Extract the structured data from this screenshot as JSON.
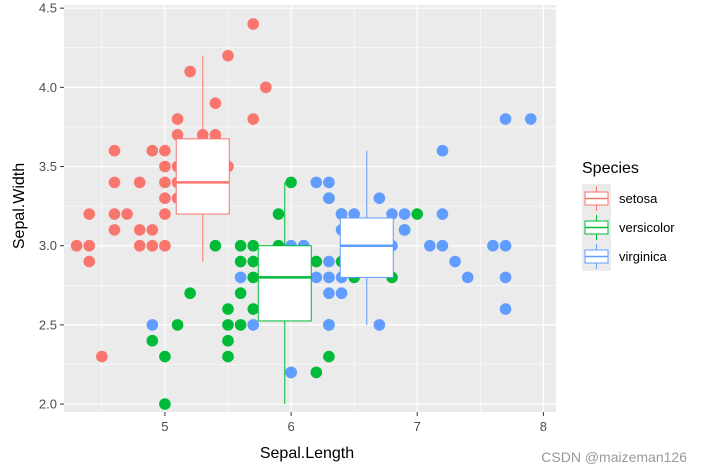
{
  "chart_data": {
    "type": "scatter",
    "overlay": "boxplot",
    "xlabel": "Sepal.Length",
    "ylabel": "Sepal.Width",
    "xlim": [
      4.2,
      8.1
    ],
    "ylim": [
      1.95,
      4.52
    ],
    "x_ticks": [
      5,
      6,
      7,
      8
    ],
    "y_ticks": [
      2.0,
      2.5,
      3.0,
      3.5,
      4.0,
      4.5
    ],
    "x_tick_labels": [
      "5",
      "6",
      "7",
      "8"
    ],
    "y_tick_labels": [
      "2.0",
      "2.5",
      "3.0",
      "3.5",
      "4.0",
      "4.5"
    ],
    "grid": true,
    "legend": {
      "title": "Species",
      "position": "right",
      "entries": [
        "setosa",
        "versicolor",
        "virginica"
      ]
    },
    "series": [
      {
        "name": "setosa",
        "color": "#F8766D",
        "points": [
          [
            4.3,
            3.0
          ],
          [
            4.4,
            3.0
          ],
          [
            4.4,
            2.9
          ],
          [
            4.4,
            3.2
          ],
          [
            4.5,
            2.3
          ],
          [
            4.6,
            3.1
          ],
          [
            4.6,
            3.2
          ],
          [
            4.6,
            3.4
          ],
          [
            4.6,
            3.6
          ],
          [
            4.7,
            3.2
          ],
          [
            4.8,
            3.0
          ],
          [
            4.8,
            3.1
          ],
          [
            4.8,
            3.4
          ],
          [
            4.9,
            3.0
          ],
          [
            4.9,
            3.1
          ],
          [
            4.9,
            3.6
          ],
          [
            5.0,
            3.0
          ],
          [
            5.0,
            3.2
          ],
          [
            5.0,
            3.3
          ],
          [
            5.0,
            3.4
          ],
          [
            5.0,
            3.5
          ],
          [
            5.0,
            3.6
          ],
          [
            5.1,
            3.3
          ],
          [
            5.1,
            3.4
          ],
          [
            5.1,
            3.5
          ],
          [
            5.1,
            3.7
          ],
          [
            5.1,
            3.8
          ],
          [
            5.2,
            3.4
          ],
          [
            5.2,
            3.5
          ],
          [
            5.2,
            4.1
          ],
          [
            5.3,
            3.7
          ],
          [
            5.4,
            3.4
          ],
          [
            5.4,
            3.7
          ],
          [
            5.4,
            3.9
          ],
          [
            5.5,
            3.5
          ],
          [
            5.5,
            4.2
          ],
          [
            5.7,
            3.8
          ],
          [
            5.7,
            4.4
          ],
          [
            5.8,
            4.0
          ]
        ],
        "box": {
          "x": 5.3,
          "whisker_low": 2.9,
          "q1": 3.2,
          "median": 3.4,
          "q3": 3.675,
          "whisker_high": 4.2
        }
      },
      {
        "name": "versicolor",
        "color": "#00BA38",
        "points": [
          [
            4.9,
            2.4
          ],
          [
            5.0,
            2.0
          ],
          [
            5.0,
            2.3
          ],
          [
            5.1,
            2.5
          ],
          [
            5.2,
            2.7
          ],
          [
            5.4,
            3.0
          ],
          [
            5.5,
            2.3
          ],
          [
            5.5,
            2.4
          ],
          [
            5.5,
            2.5
          ],
          [
            5.5,
            2.6
          ],
          [
            5.6,
            2.5
          ],
          [
            5.6,
            2.7
          ],
          [
            5.6,
            2.9
          ],
          [
            5.6,
            3.0
          ],
          [
            5.7,
            2.6
          ],
          [
            5.7,
            2.8
          ],
          [
            5.7,
            2.9
          ],
          [
            5.7,
            3.0
          ],
          [
            5.8,
            2.6
          ],
          [
            5.8,
            2.7
          ],
          [
            5.9,
            3.0
          ],
          [
            5.9,
            3.2
          ],
          [
            6.0,
            2.2
          ],
          [
            6.0,
            2.7
          ],
          [
            6.0,
            2.9
          ],
          [
            6.0,
            3.4
          ],
          [
            6.1,
            2.8
          ],
          [
            6.1,
            2.9
          ],
          [
            6.1,
            3.0
          ],
          [
            6.2,
            2.2
          ],
          [
            6.2,
            2.9
          ],
          [
            6.3,
            2.3
          ],
          [
            6.3,
            2.5
          ],
          [
            6.3,
            3.3
          ],
          [
            6.4,
            2.9
          ],
          [
            6.4,
            3.2
          ],
          [
            6.5,
            2.8
          ],
          [
            6.6,
            2.9
          ],
          [
            6.6,
            3.0
          ],
          [
            6.7,
            3.0
          ],
          [
            6.7,
            3.1
          ],
          [
            6.8,
            2.8
          ],
          [
            6.9,
            3.1
          ],
          [
            7.0,
            3.2
          ]
        ],
        "box": {
          "x": 5.95,
          "whisker_low": 2.0,
          "q1": 2.525,
          "median": 2.8,
          "q3": 3.0,
          "whisker_high": 3.4
        }
      },
      {
        "name": "virginica",
        "color": "#619CFF",
        "points": [
          [
            4.9,
            2.5
          ],
          [
            5.6,
            2.8
          ],
          [
            5.7,
            2.5
          ],
          [
            5.8,
            2.7
          ],
          [
            5.8,
            2.8
          ],
          [
            6.0,
            2.2
          ],
          [
            6.0,
            3.0
          ],
          [
            6.1,
            2.6
          ],
          [
            6.1,
            3.0
          ],
          [
            6.2,
            2.8
          ],
          [
            6.2,
            3.4
          ],
          [
            6.3,
            2.5
          ],
          [
            6.3,
            2.7
          ],
          [
            6.3,
            2.8
          ],
          [
            6.3,
            2.9
          ],
          [
            6.3,
            3.3
          ],
          [
            6.3,
            3.4
          ],
          [
            6.4,
            2.7
          ],
          [
            6.4,
            2.8
          ],
          [
            6.4,
            3.1
          ],
          [
            6.4,
            3.2
          ],
          [
            6.5,
            3.0
          ],
          [
            6.5,
            3.2
          ],
          [
            6.7,
            2.5
          ],
          [
            6.7,
            3.0
          ],
          [
            6.7,
            3.1
          ],
          [
            6.7,
            3.3
          ],
          [
            6.8,
            3.0
          ],
          [
            6.8,
            3.2
          ],
          [
            6.9,
            3.1
          ],
          [
            6.9,
            3.2
          ],
          [
            7.1,
            3.0
          ],
          [
            7.2,
            3.0
          ],
          [
            7.2,
            3.2
          ],
          [
            7.2,
            3.6
          ],
          [
            7.3,
            2.9
          ],
          [
            7.4,
            2.8
          ],
          [
            7.6,
            3.0
          ],
          [
            7.7,
            2.6
          ],
          [
            7.7,
            2.8
          ],
          [
            7.7,
            3.0
          ],
          [
            7.7,
            3.8
          ],
          [
            7.9,
            3.8
          ]
        ],
        "box": {
          "x": 6.6,
          "whisker_low": 2.5,
          "q1": 2.8,
          "median": 3.0,
          "q3": 3.175,
          "whisker_high": 3.6
        }
      }
    ]
  },
  "watermark": "CSDN @maizeman126"
}
